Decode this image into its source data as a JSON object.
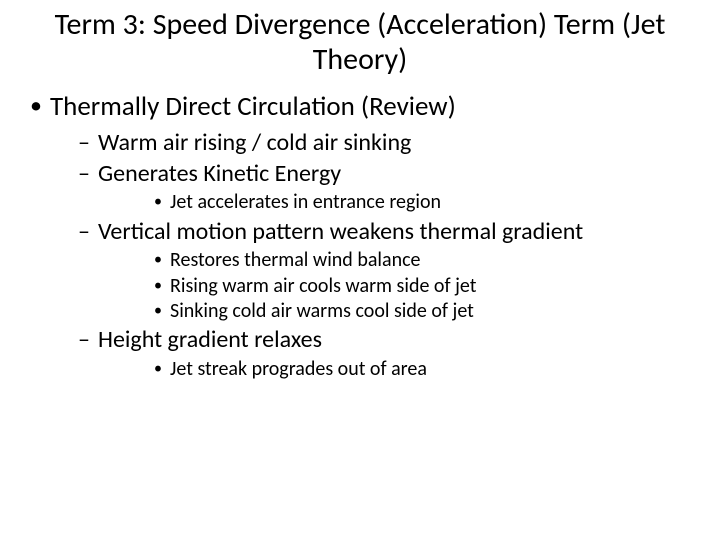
{
  "title": "Term 3:  Speed Divergence (Acceleration) Term (Jet Theory)",
  "b1": "Thermally Direct Circulation (Review)",
  "b1s1": "Warm air rising / cold air sinking",
  "b1s2": "Generates Kinetic Energy",
  "b1s2a": "Jet accelerates in entrance region",
  "b1s3": "Vertical motion pattern weakens thermal gradient",
  "b1s3a": "Restores thermal wind balance",
  "b1s3b": "Rising warm air cools warm side of jet",
  "b1s3c": "Sinking cold air warms cool side of jet",
  "b1s4": "Height gradient relaxes",
  "b1s4a": "Jet streak progrades out of area",
  "style": {
    "background_color": "#ffffff",
    "text_color": "#000000",
    "font_family": "Calibri",
    "title_fontsize": 30,
    "lvl1_fontsize": 27,
    "lvl2_fontsize": 24,
    "lvl3_fontsize": 20,
    "bullet_lvl1": "•",
    "bullet_lvl2": "–",
    "bullet_lvl3": "•"
  }
}
